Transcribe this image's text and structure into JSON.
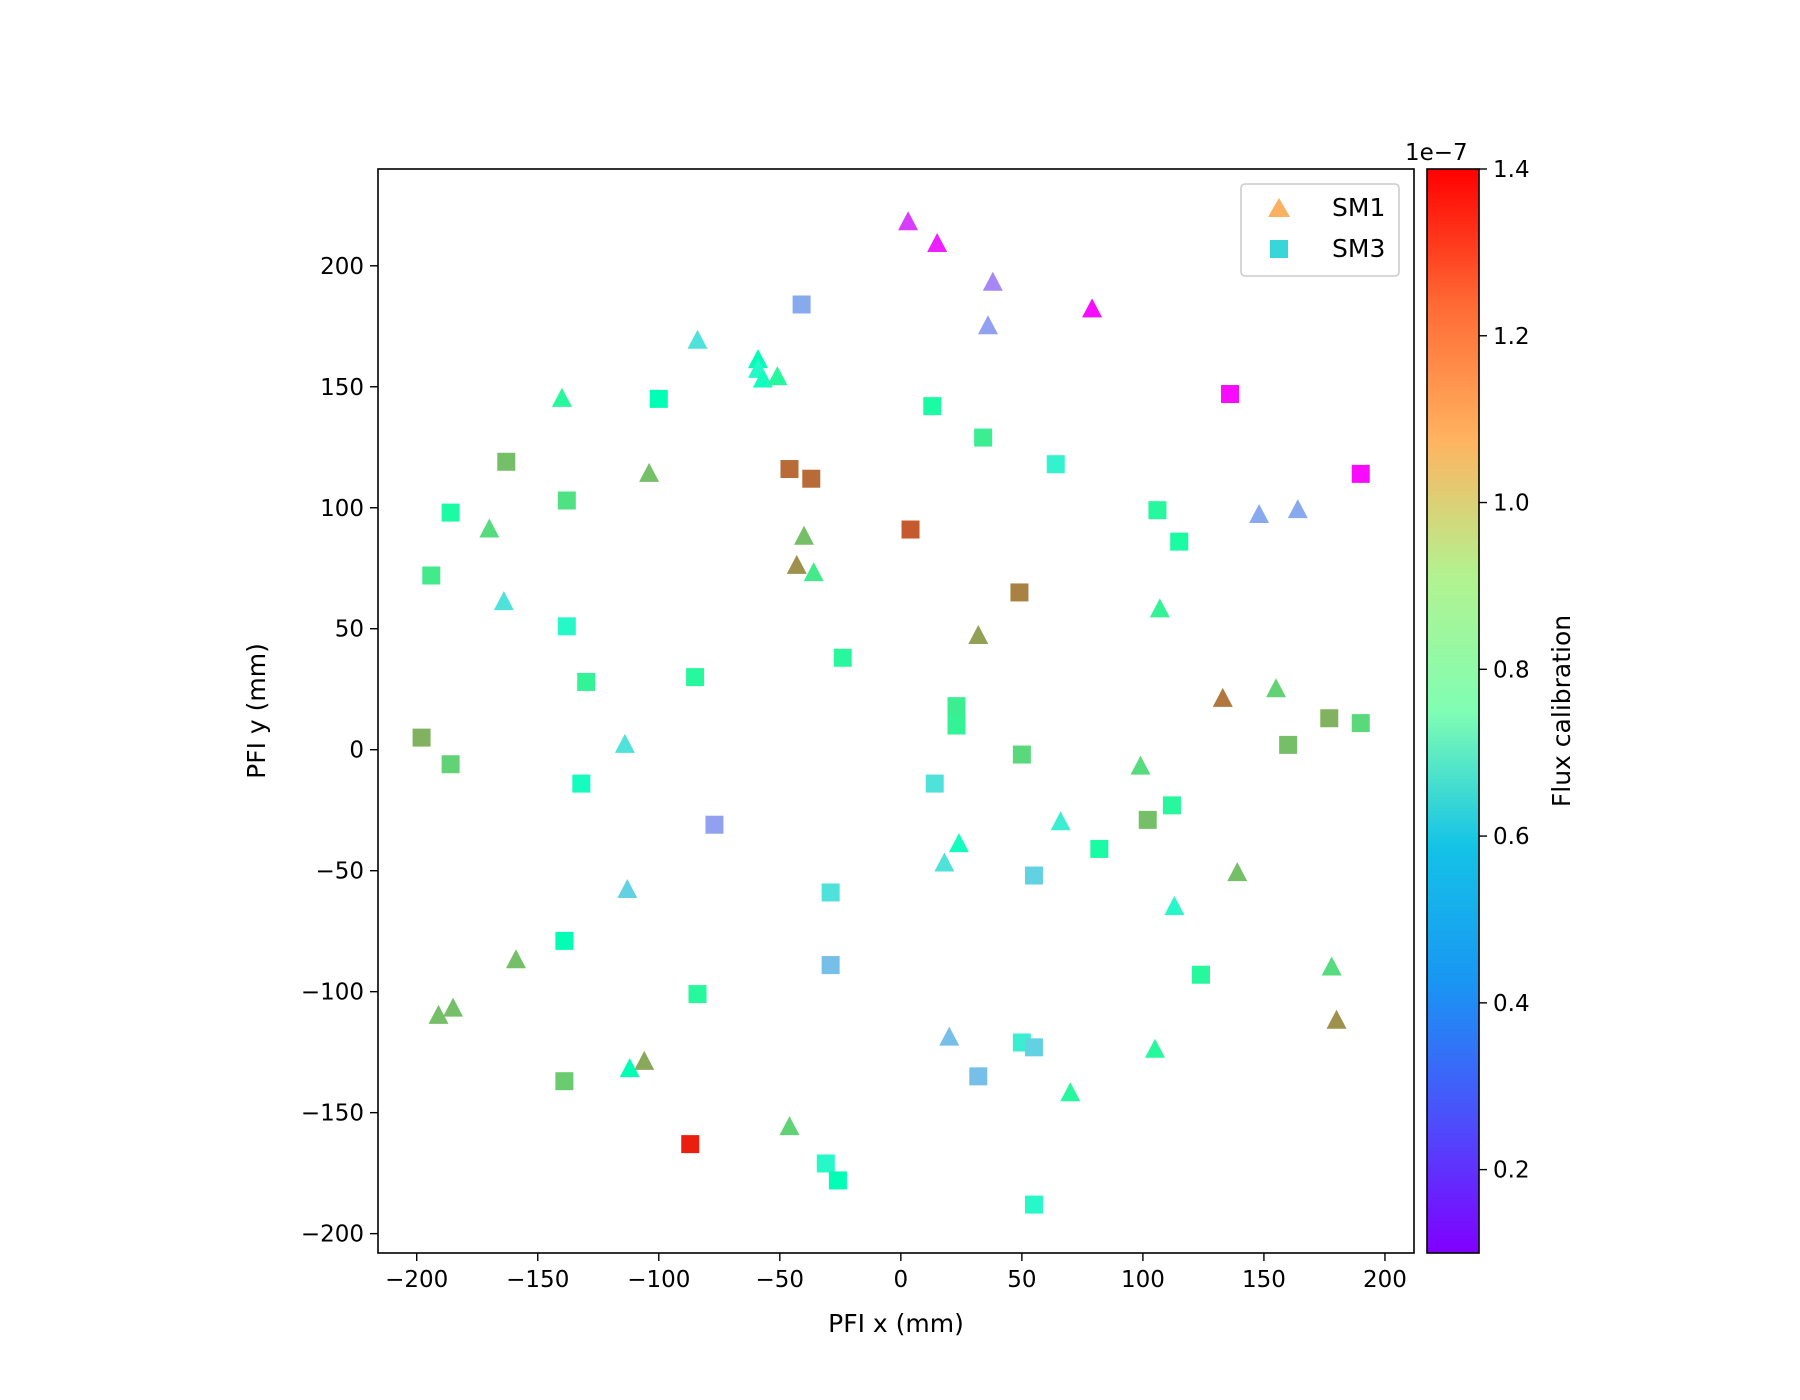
{
  "chart_data": {
    "type": "scatter",
    "xlabel": "PFI x (mm)",
    "ylabel": "PFI y (mm)",
    "xlim": [
      -216,
      212
    ],
    "ylim": [
      -208,
      240
    ],
    "xticks": [
      -200,
      -150,
      -100,
      -50,
      0,
      50,
      100,
      150,
      200
    ],
    "yticks": [
      -200,
      -150,
      -100,
      -50,
      0,
      50,
      100,
      150,
      200
    ],
    "grid": false,
    "legend_position": "top-right",
    "colorbar": {
      "label": "Flux calibration",
      "offset_text": "1e−7",
      "range": [
        0.1,
        1.4
      ],
      "ticks": [
        0.2,
        0.4,
        0.6,
        0.8,
        1.0,
        1.2,
        1.4
      ],
      "tick_labels": [
        "0.2",
        "0.4",
        "0.6",
        "0.8",
        "1.0",
        "1.2",
        "1.4"
      ],
      "colormap": "rainbow"
    },
    "series": [
      {
        "name": "SM1",
        "marker": "triangle",
        "legend_color": "#f9b060",
        "points": [
          {
            "x": 3,
            "y": 218,
            "c": 0.2
          },
          {
            "x": 15,
            "y": 209,
            "c": 0.15
          },
          {
            "x": 38,
            "y": 193,
            "c": 0.33
          },
          {
            "x": 36,
            "y": 175,
            "c": 0.38
          },
          {
            "x": 79,
            "y": 182,
            "c": 0.12
          },
          {
            "x": -84,
            "y": 169,
            "c": 0.55
          },
          {
            "x": -59,
            "y": 161,
            "c": 0.75
          },
          {
            "x": -59,
            "y": 157,
            "c": 0.65
          },
          {
            "x": -57,
            "y": 153,
            "c": 0.7
          },
          {
            "x": -51,
            "y": 154,
            "c": 0.85
          },
          {
            "x": -140,
            "y": 145,
            "c": 0.85
          },
          {
            "x": -104,
            "y": 114,
            "c": 1.05
          },
          {
            "x": -170,
            "y": 91,
            "c": 0.97
          },
          {
            "x": -40,
            "y": 88,
            "c": 1.05
          },
          {
            "x": -43,
            "y": 76,
            "c": 1.15
          },
          {
            "x": -36,
            "y": 73,
            "c": 0.92
          },
          {
            "x": -164,
            "y": 61,
            "c": 0.55
          },
          {
            "x": 148,
            "y": 97,
            "c": 0.4
          },
          {
            "x": 164,
            "y": 99,
            "c": 0.4
          },
          {
            "x": 107,
            "y": 58,
            "c": 0.88
          },
          {
            "x": 32,
            "y": 47,
            "c": 1.12
          },
          {
            "x": 133,
            "y": 21,
            "c": 1.2
          },
          {
            "x": 155,
            "y": 25,
            "c": 1.0
          },
          {
            "x": -114,
            "y": 2,
            "c": 0.55
          },
          {
            "x": 99,
            "y": -7,
            "c": 0.97
          },
          {
            "x": 66,
            "y": -30,
            "c": 0.6
          },
          {
            "x": 24,
            "y": -39,
            "c": 0.7
          },
          {
            "x": 18,
            "y": -47,
            "c": 0.55
          },
          {
            "x": 139,
            "y": -51,
            "c": 1.05
          },
          {
            "x": -113,
            "y": -58,
            "c": 0.5
          },
          {
            "x": 113,
            "y": -65,
            "c": 0.65
          },
          {
            "x": -159,
            "y": -87,
            "c": 1.05
          },
          {
            "x": 178,
            "y": -90,
            "c": 0.97
          },
          {
            "x": 180,
            "y": -112,
            "c": 1.15
          },
          {
            "x": -185,
            "y": -107,
            "c": 1.05
          },
          {
            "x": -191,
            "y": -110,
            "c": 1.05
          },
          {
            "x": 20,
            "y": -119,
            "c": 0.45
          },
          {
            "x": 105,
            "y": -124,
            "c": 0.85
          },
          {
            "x": -106,
            "y": -129,
            "c": 1.1
          },
          {
            "x": -112,
            "y": -132,
            "c": 0.75
          },
          {
            "x": 70,
            "y": -142,
            "c": 0.85
          },
          {
            "x": -46,
            "y": -156,
            "c": 1.0
          }
        ]
      },
      {
        "name": "SM3",
        "marker": "square",
        "legend_color": "#38d6d8",
        "points": [
          {
            "x": -41,
            "y": 184,
            "c": 0.4
          },
          {
            "x": 136,
            "y": 147,
            "c": 0.12
          },
          {
            "x": 190,
            "y": 114,
            "c": 0.12
          },
          {
            "x": -100,
            "y": 145,
            "c": 0.75
          },
          {
            "x": 13,
            "y": 142,
            "c": 0.82
          },
          {
            "x": 34,
            "y": 129,
            "c": 0.9
          },
          {
            "x": -163,
            "y": 119,
            "c": 1.05
          },
          {
            "x": -46,
            "y": 116,
            "c": 1.22
          },
          {
            "x": -37,
            "y": 112,
            "c": 1.22
          },
          {
            "x": 64,
            "y": 118,
            "c": 0.62
          },
          {
            "x": -138,
            "y": 103,
            "c": 0.95
          },
          {
            "x": -186,
            "y": 98,
            "c": 0.82
          },
          {
            "x": 106,
            "y": 99,
            "c": 0.85
          },
          {
            "x": 4,
            "y": 91,
            "c": 1.25
          },
          {
            "x": 115,
            "y": 86,
            "c": 0.82
          },
          {
            "x": -194,
            "y": 72,
            "c": 0.92
          },
          {
            "x": 49,
            "y": 65,
            "c": 1.18
          },
          {
            "x": -138,
            "y": 51,
            "c": 0.65
          },
          {
            "x": -24,
            "y": 38,
            "c": 0.85
          },
          {
            "x": -85,
            "y": 30,
            "c": 0.85
          },
          {
            "x": -130,
            "y": 28,
            "c": 0.88
          },
          {
            "x": 23,
            "y": 18,
            "c": 0.9
          },
          {
            "x": 23,
            "y": 14,
            "c": 0.9
          },
          {
            "x": 23,
            "y": 10,
            "c": 0.88
          },
          {
            "x": -198,
            "y": 5,
            "c": 1.08
          },
          {
            "x": 177,
            "y": 13,
            "c": 1.08
          },
          {
            "x": 190,
            "y": 11,
            "c": 0.98
          },
          {
            "x": 160,
            "y": 2,
            "c": 1.05
          },
          {
            "x": -186,
            "y": -6,
            "c": 1.0
          },
          {
            "x": 50,
            "y": -2,
            "c": 0.98
          },
          {
            "x": -132,
            "y": -14,
            "c": 0.7
          },
          {
            "x": 14,
            "y": -14,
            "c": 0.55
          },
          {
            "x": -77,
            "y": -31,
            "c": 0.38
          },
          {
            "x": 102,
            "y": -29,
            "c": 1.05
          },
          {
            "x": 112,
            "y": -23,
            "c": 0.85
          },
          {
            "x": 82,
            "y": -41,
            "c": 0.82
          },
          {
            "x": 55,
            "y": -52,
            "c": 0.5
          },
          {
            "x": -29,
            "y": -59,
            "c": 0.55
          },
          {
            "x": -139,
            "y": -79,
            "c": 0.75
          },
          {
            "x": -29,
            "y": -89,
            "c": 0.45
          },
          {
            "x": 124,
            "y": -93,
            "c": 0.85
          },
          {
            "x": -84,
            "y": -101,
            "c": 0.85
          },
          {
            "x": 50,
            "y": -121,
            "c": 0.6
          },
          {
            "x": 55,
            "y": -123,
            "c": 0.5
          },
          {
            "x": 32,
            "y": -135,
            "c": 0.45
          },
          {
            "x": -139,
            "y": -137,
            "c": 1.02
          },
          {
            "x": -87,
            "y": -163,
            "c": 1.35
          },
          {
            "x": -31,
            "y": -171,
            "c": 0.65
          },
          {
            "x": -26,
            "y": -178,
            "c": 0.75
          },
          {
            "x": 55,
            "y": -188,
            "c": 0.65
          }
        ]
      }
    ]
  }
}
